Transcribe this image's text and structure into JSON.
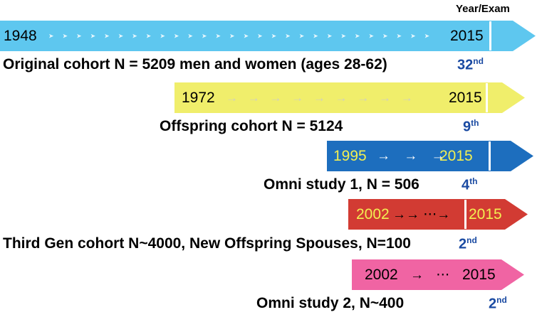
{
  "header": {
    "year_exam": "Year/Exam"
  },
  "colors": {
    "original_arrow": "#5ec7ef",
    "offspring_arrow": "#f0ee6b",
    "omni1_arrow": "#1d6ebe",
    "thirdgen_arrow": "#d23b33",
    "omni2_arrow": "#f064a3",
    "exam_number_blue": "#1a4aa2",
    "year_text_yellow": "#f2ef52"
  },
  "rows": [
    {
      "name": "original-cohort",
      "start_year": "1948",
      "end_year": "2015",
      "flow": "➤➤➤➤➤➤➤➤➤➤➤➤➤➤➤➤➤➤➤➤➤➤➤➤➤➤➤➤",
      "label": "Original cohort N = 5209 men and women (ages 28-62)",
      "exam": "32",
      "exam_sup": "nd"
    },
    {
      "name": "offspring-cohort",
      "start_year": "1972",
      "end_year": "2015",
      "flow": "→ → → → → → → → →",
      "label": "Offspring cohort N = 5124",
      "exam": "9",
      "exam_sup": "th"
    },
    {
      "name": "omni-study-1",
      "start_year": "1995",
      "end_year": "2015",
      "flow": "→ → →",
      "label": "Omni study 1, N = 506",
      "exam": "4",
      "exam_sup": "th"
    },
    {
      "name": "third-gen-cohort",
      "start_year": "2002",
      "end_year": "2015",
      "flow": "→→ ⋯→",
      "label": "Third Gen cohort N~4000,  New Offspring Spouses, N=100",
      "exam": "2",
      "exam_sup": "nd"
    },
    {
      "name": "omni-study-2",
      "start_year": "2002",
      "end_year": "2015",
      "flow": "→ ⋯",
      "label": "Omni study 2, N~400",
      "exam": "2",
      "exam_sup": "nd"
    }
  ]
}
